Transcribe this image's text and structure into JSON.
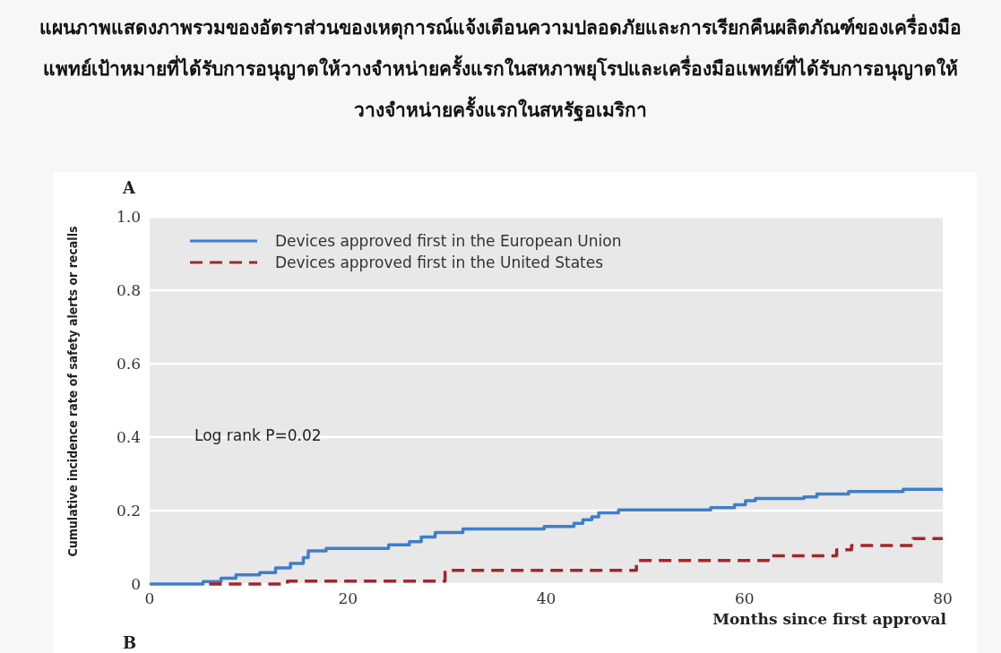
{
  "chart_data": {
    "type": "step",
    "title": "แผนภาพแสดงภาพรวมของอัตราส่วนของเหตุการณ์แจ้งเตือนความปลอดภัยและการเรียกคืนผลิตภัณฑ์ของเครื่องมือแพทย์เป้าหมายที่ได้รับการอนุญาตให้วางจำหน่ายครั้งแรกในสหภาพยุโรปและเครื่องมือแพทย์ที่ได้รับการอนุญาตให้วางจำหน่ายครั้งแรกในสหรัฐอเมริกา",
    "xlabel": "Months since first approval",
    "ylabel": "Cumulative incidence rate of safety alerts or recalls",
    "annotations": [
      "A",
      "Log rank P=0.02",
      "B"
    ],
    "series": [
      {
        "name": "Devices approved first in the European Union",
        "color": "#3f7fc8",
        "line_style": "solid",
        "x": [
          0,
          5.4,
          7.2,
          8.7,
          11.1,
          12.7,
          14.2,
          15.5,
          16.0,
          17.8,
          24.1,
          26.2,
          27.4,
          28.8,
          31.6,
          39.8,
          42.8,
          43.7,
          44.6,
          45.3,
          47.3,
          56.6,
          59.0,
          60.1,
          61.1,
          66.0,
          67.3,
          70.5,
          76.0,
          80
        ],
        "values": [
          0,
          0.007,
          0.016,
          0.025,
          0.031,
          0.044,
          0.056,
          0.072,
          0.09,
          0.097,
          0.107,
          0.115,
          0.128,
          0.14,
          0.15,
          0.157,
          0.165,
          0.175,
          0.183,
          0.194,
          0.202,
          0.208,
          0.216,
          0.227,
          0.233,
          0.237,
          0.245,
          0.252,
          0.258,
          0.258
        ]
      },
      {
        "name": "Devices approved first in the United States",
        "color": "#a3262a",
        "line_style": "dashed",
        "x": [
          6.0,
          13.9,
          29.8,
          49.1,
          62.4,
          69.3,
          70.8,
          77.0,
          80
        ],
        "values": [
          0,
          0.008,
          0.037,
          0.064,
          0.077,
          0.093,
          0.105,
          0.124,
          0.124
        ]
      }
    ],
    "xlim": [
      0,
      80
    ],
    "ylim": [
      0,
      1
    ],
    "xticks": [
      0,
      20,
      40,
      60,
      80
    ],
    "yticks": [
      0,
      0.2,
      0.4,
      0.6,
      0.8,
      {
        "value": 1,
        "label": "1.0"
      }
    ],
    "grid": "y",
    "legend": "top left"
  }
}
